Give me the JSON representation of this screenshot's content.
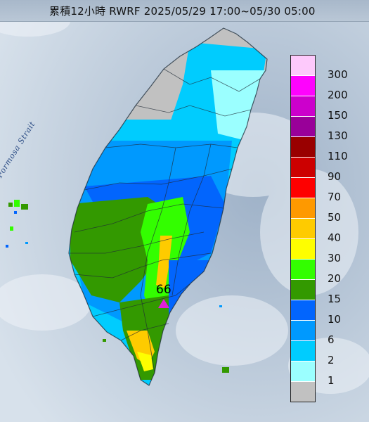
{
  "title": "累積12小時 RWRF 2025/05/29 17:00~05/30 05:00",
  "map_label": "Formosa Strait",
  "max_marker": {
    "value": "66",
    "color": "#e21fd7"
  },
  "legend": [
    {
      "label": "300",
      "color": "#fdc9fb"
    },
    {
      "label": "200",
      "color": "#fe03fd"
    },
    {
      "label": "150",
      "color": "#cc00cc"
    },
    {
      "label": "130",
      "color": "#990099"
    },
    {
      "label": "110",
      "color": "#990000"
    },
    {
      "label": "90",
      "color": "#cc0000"
    },
    {
      "label": "70",
      "color": "#fe0000"
    },
    {
      "label": "50",
      "color": "#fe9900"
    },
    {
      "label": "40",
      "color": "#fecb00"
    },
    {
      "label": "30",
      "color": "#fefe00"
    },
    {
      "label": "20",
      "color": "#33fe00"
    },
    {
      "label": "15",
      "color": "#339900"
    },
    {
      "label": "10",
      "color": "#0265fd"
    },
    {
      "label": "6",
      "color": "#0099fe"
    },
    {
      "label": "2",
      "color": "#00ccfe"
    },
    {
      "label": "1",
      "color": "#9bffff"
    },
    {
      "label": "",
      "color": "#c1c1c1"
    }
  ]
}
